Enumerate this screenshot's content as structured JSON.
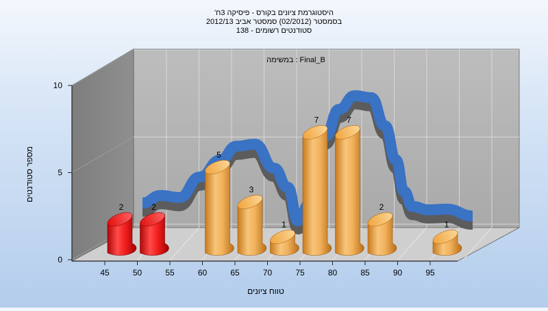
{
  "chart_data": {
    "type": "bar",
    "title_lines": [
      "היסטוגרמת ציונים בקורס - פיסיקה 3ח'",
      "בסמסטר  (02/2012)  סמסטר אביב 2012/13",
      "סטודנטים רשומים - 138"
    ],
    "subtitle": "במשימה : Final_B",
    "xlabel": "טווח ציונים",
    "ylabel": "מספר סטודנטים",
    "ylim": [
      0,
      10
    ],
    "y_ticks": [
      0,
      5,
      10
    ],
    "x_ticks": [
      45,
      50,
      55,
      60,
      65,
      70,
      75,
      80,
      85,
      90,
      95
    ],
    "bars": [
      {
        "x": 45,
        "value": 2,
        "color": "red"
      },
      {
        "x": 50,
        "value": 2,
        "color": "red"
      },
      {
        "x": 60,
        "value": 5,
        "color": "orange"
      },
      {
        "x": 65,
        "value": 3,
        "color": "orange"
      },
      {
        "x": 70,
        "value": 1,
        "color": "orange"
      },
      {
        "x": 75,
        "value": 7,
        "color": "orange"
      },
      {
        "x": 80,
        "value": 7,
        "color": "orange"
      },
      {
        "x": 85,
        "value": 2,
        "color": "orange"
      },
      {
        "x": 95,
        "value": 1,
        "color": "orange"
      }
    ],
    "curve_color": "#3a72c4",
    "grid": true
  }
}
